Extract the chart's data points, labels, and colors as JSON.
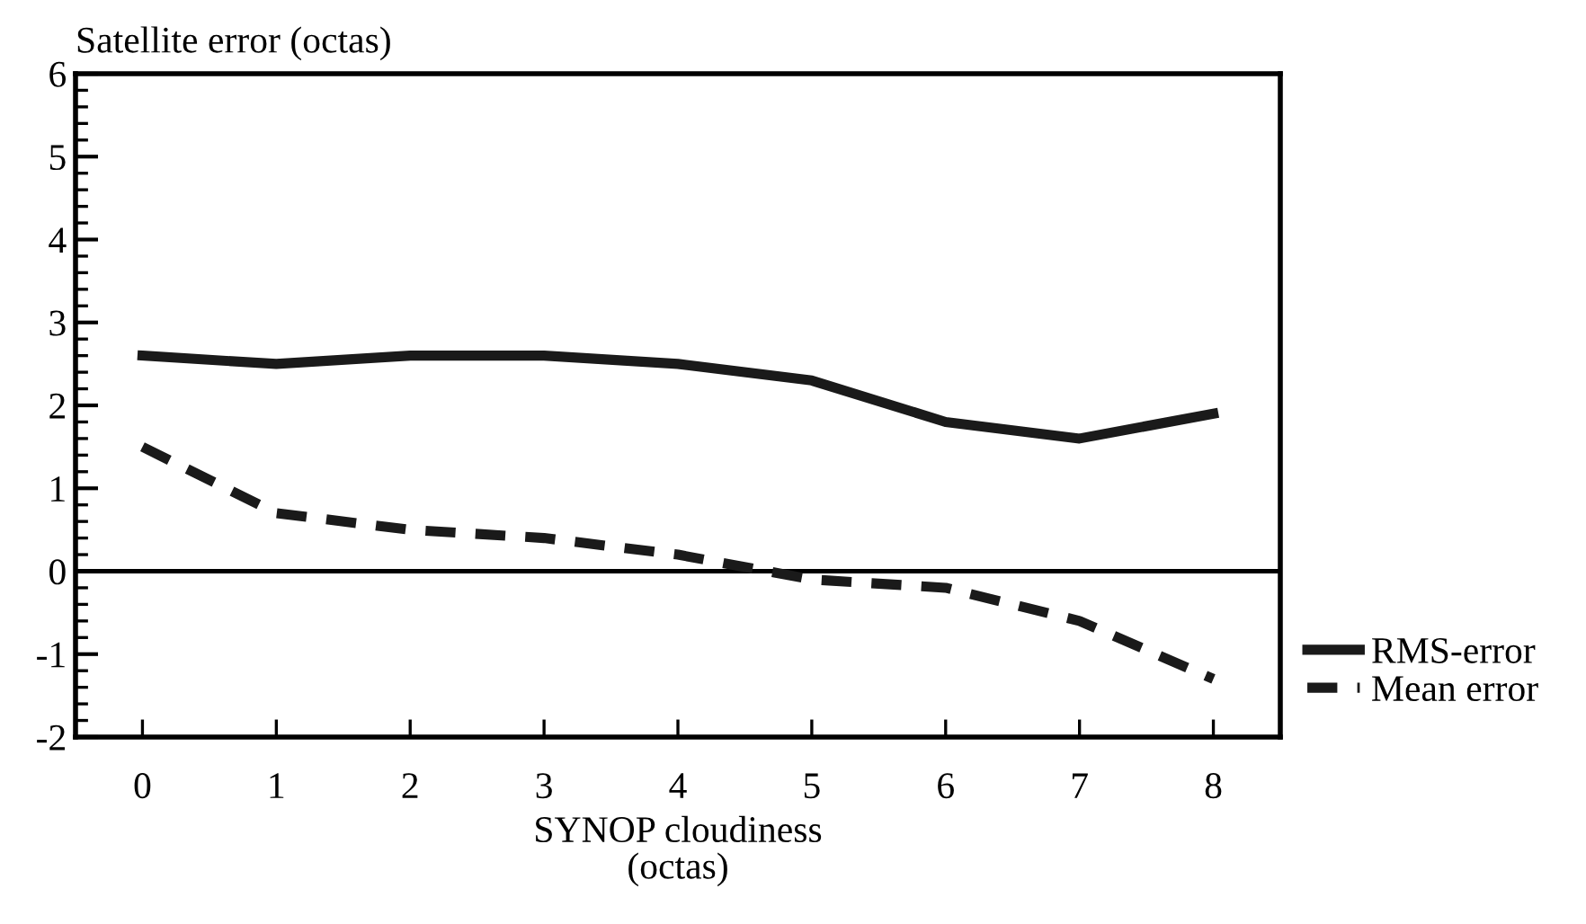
{
  "chart_data": {
    "type": "line",
    "xlabel": "SYNOP cloudiness\n(octas)",
    "ylabel": "Satellite error (octas)",
    "x": [
      0,
      1,
      2,
      3,
      4,
      5,
      6,
      7,
      8
    ],
    "series": [
      {
        "name": "RMS-error",
        "color": "#1a1a1a",
        "line_style": "solid",
        "values": [
          2.6,
          2.5,
          2.6,
          2.6,
          2.5,
          2.3,
          1.8,
          1.6,
          1.9
        ]
      },
      {
        "name": "Mean error",
        "color": "#1a1a1a",
        "line_style": "dashed",
        "values": [
          1.5,
          0.7,
          0.5,
          0.4,
          0.2,
          -0.1,
          -0.2,
          -0.6,
          -1.3
        ]
      }
    ],
    "xlim": [
      -0.5,
      8.5
    ],
    "xticks": [
      0,
      1,
      2,
      3,
      4,
      5,
      6,
      7,
      8
    ],
    "ylim": [
      -2,
      6
    ],
    "yticks": [
      {
        "value": -2,
        "label": "-2"
      },
      {
        "value": -1,
        "label": "-1"
      },
      0,
      1,
      2,
      3,
      4,
      5,
      6
    ],
    "ref_lines": [
      {
        "axis": "y",
        "value": 0,
        "label": null,
        "color": "#000000",
        "line_style": "solid"
      }
    ],
    "grid": false,
    "legend": "right",
    "marker": "none"
  }
}
